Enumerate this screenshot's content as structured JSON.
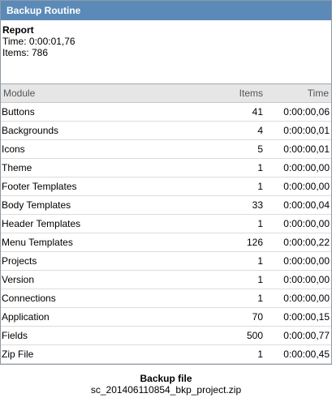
{
  "window": {
    "title": "Backup Routine"
  },
  "report": {
    "label": "Report",
    "time_line": "Time: 0:00:01,76",
    "items_line": "Items: 786"
  },
  "table": {
    "headers": {
      "module": "Module",
      "items": "Items",
      "time": "Time"
    },
    "rows": [
      {
        "module": "Buttons",
        "items": "41",
        "time": "0:00:00,06"
      },
      {
        "module": "Backgrounds",
        "items": "4",
        "time": "0:00:00,01"
      },
      {
        "module": "Icons",
        "items": "5",
        "time": "0:00:00,01"
      },
      {
        "module": "Theme",
        "items": "1",
        "time": "0:00:00,00"
      },
      {
        "module": "Footer Templates",
        "items": "1",
        "time": "0:00:00,00"
      },
      {
        "module": "Body Templates",
        "items": "33",
        "time": "0:00:00,04"
      },
      {
        "module": "Header Templates",
        "items": "1",
        "time": "0:00:00,00"
      },
      {
        "module": "Menu Templates",
        "items": "126",
        "time": "0:00:00,22"
      },
      {
        "module": "Projects",
        "items": "1",
        "time": "0:00:00,00"
      },
      {
        "module": "Version",
        "items": "1",
        "time": "0:00:00,00"
      },
      {
        "module": "Connections",
        "items": "1",
        "time": "0:00:00,00"
      },
      {
        "module": "Application",
        "items": "70",
        "time": "0:00:00,15"
      },
      {
        "module": "Fields",
        "items": "500",
        "time": "0:00:00,77"
      },
      {
        "module": "Zip File",
        "items": "1",
        "time": "0:00:00,45"
      }
    ]
  },
  "backup_file": {
    "label": "Backup file",
    "filename": "sc_201406110854_bkp_project.zip"
  },
  "colors": {
    "titlebar": "#5b8ab8",
    "header_bg": "#e6e6e6"
  }
}
